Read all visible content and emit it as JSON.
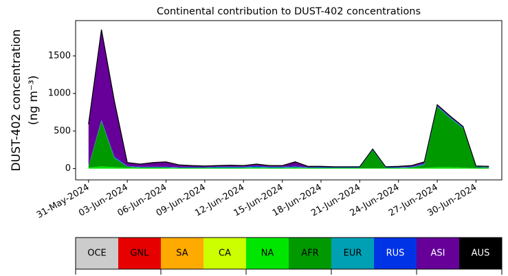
{
  "chart_data": {
    "type": "stacked_area",
    "title": "Continental contribution to DUST-402 concentrations",
    "y_label": [
      "DUST-402 concentration",
      "(ng m⁻³)"
    ],
    "x": [
      "2024-05-31",
      "2024-06-01",
      "2024-06-02",
      "2024-06-03",
      "2024-06-04",
      "2024-06-05",
      "2024-06-06",
      "2024-06-07",
      "2024-06-08",
      "2024-06-09",
      "2024-06-10",
      "2024-06-11",
      "2024-06-12",
      "2024-06-13",
      "2024-06-14",
      "2024-06-15",
      "2024-06-16",
      "2024-06-17",
      "2024-06-18",
      "2024-06-19",
      "2024-06-20",
      "2024-06-21",
      "2024-06-22",
      "2024-06-23",
      "2024-06-24",
      "2024-06-25",
      "2024-06-26",
      "2024-06-27",
      "2024-06-28",
      "2024-06-29",
      "2024-06-30",
      "2024-07-01"
    ],
    "series": [
      {
        "name": "OCE",
        "color": "#cccccc",
        "values": [
          0,
          0,
          0,
          0,
          0,
          0,
          0,
          0,
          0,
          0,
          0,
          0,
          0,
          0,
          0,
          0,
          0,
          0,
          0,
          0,
          0,
          0,
          0,
          0,
          0,
          0,
          0,
          0,
          0,
          0,
          0,
          0
        ]
      },
      {
        "name": "GNL",
        "color": "#e60000",
        "values": [
          0,
          0,
          0,
          0,
          0,
          0,
          0,
          0,
          0,
          0,
          0,
          0,
          0,
          0,
          0,
          0,
          0,
          0,
          0,
          0,
          0,
          0,
          0,
          0,
          0,
          0,
          0,
          0,
          0,
          0,
          0,
          0
        ]
      },
      {
        "name": "SA",
        "color": "#ffaa00",
        "values": [
          0,
          0,
          0,
          0,
          0,
          0,
          0,
          0,
          0,
          0,
          0,
          0,
          0,
          0,
          0,
          0,
          0,
          0,
          0,
          0,
          0,
          0,
          0,
          0,
          0,
          0,
          0,
          0,
          0,
          0,
          0,
          0
        ]
      },
      {
        "name": "CA",
        "color": "#ccff00",
        "values": [
          0,
          0,
          0,
          0,
          0,
          0,
          0,
          0,
          0,
          0,
          0,
          0,
          0,
          0,
          0,
          0,
          0,
          0,
          0,
          0,
          0,
          0,
          0,
          0,
          0,
          0,
          0,
          0,
          0,
          0,
          0,
          0
        ]
      },
      {
        "name": "NA",
        "color": "#00e600",
        "values": [
          15,
          30,
          20,
          15,
          10,
          10,
          10,
          5,
          5,
          5,
          5,
          5,
          5,
          10,
          5,
          5,
          10,
          5,
          5,
          5,
          5,
          5,
          5,
          5,
          5,
          10,
          10,
          20,
          20,
          15,
          5,
          5
        ]
      },
      {
        "name": "AFR",
        "color": "#009900",
        "values": [
          10,
          600,
          120,
          10,
          5,
          5,
          5,
          5,
          5,
          5,
          5,
          5,
          5,
          5,
          5,
          5,
          5,
          5,
          5,
          5,
          5,
          5,
          240,
          5,
          5,
          5,
          40,
          800,
          650,
          520,
          15,
          10
        ]
      },
      {
        "name": "EUR",
        "color": "#00a0b4",
        "values": [
          5,
          10,
          10,
          5,
          5,
          5,
          5,
          5,
          5,
          5,
          10,
          10,
          10,
          10,
          10,
          10,
          10,
          5,
          5,
          5,
          5,
          5,
          5,
          5,
          5,
          5,
          10,
          10,
          10,
          10,
          5,
          5
        ]
      },
      {
        "name": "RUS",
        "color": "#0033e6",
        "values": [
          5,
          10,
          10,
          5,
          5,
          5,
          5,
          5,
          5,
          5,
          5,
          5,
          5,
          10,
          5,
          5,
          5,
          5,
          5,
          5,
          5,
          5,
          5,
          5,
          5,
          5,
          5,
          5,
          5,
          5,
          5,
          5
        ]
      },
      {
        "name": "ASI",
        "color": "#660099",
        "values": [
          555,
          1200,
          740,
          45,
          35,
          55,
          65,
          30,
          20,
          15,
          15,
          20,
          15,
          25,
          15,
          15,
          60,
          10,
          10,
          5,
          5,
          5,
          5,
          5,
          10,
          15,
          25,
          15,
          15,
          10,
          5,
          5
        ]
      },
      {
        "name": "AUS",
        "color": "#000000",
        "values": [
          0,
          0,
          0,
          0,
          0,
          0,
          0,
          0,
          0,
          0,
          0,
          0,
          0,
          0,
          0,
          0,
          0,
          0,
          0,
          0,
          0,
          0,
          0,
          0,
          0,
          0,
          0,
          0,
          0,
          0,
          0,
          0
        ]
      }
    ],
    "xlim": [
      "2024-05-30",
      "2024-07-02"
    ],
    "xticks": [
      {
        "value": "2024-05-31",
        "label": "31-May-2024"
      },
      {
        "value": "2024-06-03",
        "label": "03-Jun-2024"
      },
      {
        "value": "2024-06-06",
        "label": "06-Jun-2024"
      },
      {
        "value": "2024-06-09",
        "label": "09-Jun-2024"
      },
      {
        "value": "2024-06-12",
        "label": "12-Jun-2024"
      },
      {
        "value": "2024-06-15",
        "label": "15-Jun-2024"
      },
      {
        "value": "2024-06-18",
        "label": "18-Jun-2024"
      },
      {
        "value": "2024-06-21",
        "label": "21-Jun-2024"
      },
      {
        "value": "2024-06-24",
        "label": "24-Jun-2024"
      },
      {
        "value": "2024-06-27",
        "label": "27-Jun-2024"
      },
      {
        "value": "2024-06-30",
        "label": "30-Jun-2024"
      }
    ],
    "ylim": [
      -150,
      1970
    ],
    "yticks": [
      0,
      500,
      1000,
      1500
    ]
  }
}
